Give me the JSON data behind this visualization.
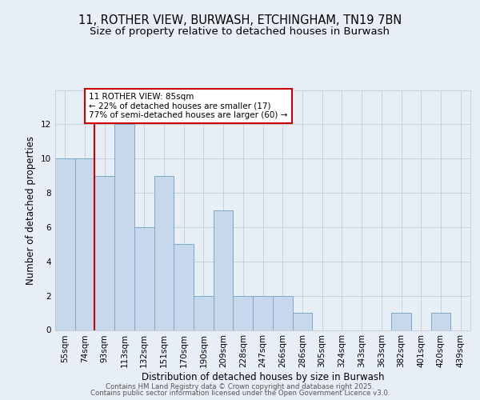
{
  "title1": "11, ROTHER VIEW, BURWASH, ETCHINGHAM, TN19 7BN",
  "title2": "Size of property relative to detached houses in Burwash",
  "xlabel": "Distribution of detached houses by size in Burwash",
  "ylabel": "Number of detached properties",
  "categories": [
    "55sqm",
    "74sqm",
    "93sqm",
    "113sqm",
    "132sqm",
    "151sqm",
    "170sqm",
    "190sqm",
    "209sqm",
    "228sqm",
    "247sqm",
    "266sqm",
    "286sqm",
    "305sqm",
    "324sqm",
    "343sqm",
    "363sqm",
    "382sqm",
    "401sqm",
    "420sqm",
    "439sqm"
  ],
  "values": [
    10,
    10,
    9,
    12,
    6,
    9,
    5,
    2,
    7,
    2,
    2,
    2,
    1,
    0,
    0,
    0,
    0,
    1,
    0,
    1,
    0
  ],
  "bar_color": "#c8d8ec",
  "bar_edge_color": "#7aaac8",
  "ylim": [
    0,
    14
  ],
  "yticks": [
    0,
    2,
    4,
    6,
    8,
    10,
    12
  ],
  "vline_color": "#cc0000",
  "annotation_text": "11 ROTHER VIEW: 85sqm\n← 22% of detached houses are smaller (17)\n77% of semi-detached houses are larger (60) →",
  "annotation_box_color": "#cc0000",
  "bg_color": "#e8eef5",
  "grid_color": "#c0ccd8",
  "footer1": "Contains HM Land Registry data © Crown copyright and database right 2025.",
  "footer2": "Contains public sector information licensed under the Open Government Licence v3.0.",
  "title_fontsize": 10.5,
  "subtitle_fontsize": 9.5,
  "xlabel_fontsize": 8.5,
  "ylabel_fontsize": 8.5,
  "tick_fontsize": 7.5,
  "annot_fontsize": 7.5
}
